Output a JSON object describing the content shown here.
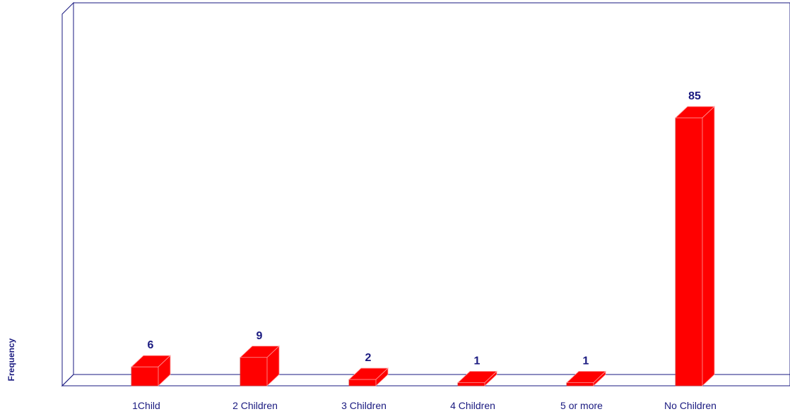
{
  "chart_data": {
    "type": "bar",
    "categories": [
      "1Child",
      "2 Children",
      "3 Children",
      "4 Children",
      "5 or more",
      "No Children"
    ],
    "values": [
      6,
      9,
      2,
      1,
      1,
      85
    ],
    "title": "",
    "xlabel": "",
    "ylabel": "Frequency",
    "ylim": [
      0,
      100
    ],
    "grid": false,
    "legend": "none",
    "bar_color": "#ff0000",
    "text_color": "#1a1a80",
    "style": "3d"
  }
}
